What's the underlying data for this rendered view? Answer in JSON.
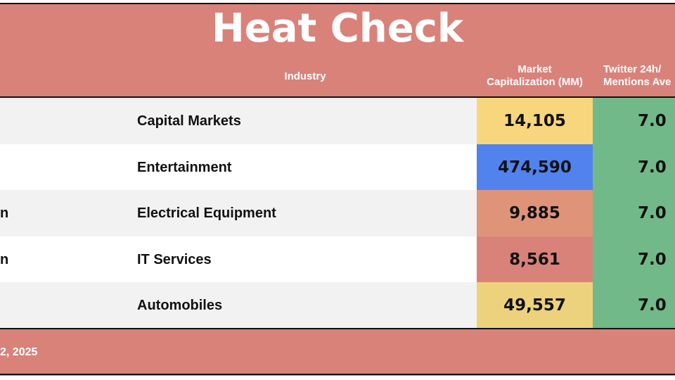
{
  "header": {
    "title": "Heat Check"
  },
  "table": {
    "columns": {
      "industry": "Industry",
      "market_cap": [
        "Market",
        "Capitalization (MM)"
      ],
      "twitter": [
        "Twitter 24h/",
        "Mentions Ave"
      ]
    },
    "rows": [
      {
        "industry": "Capital Markets",
        "market_cap": "14,105",
        "twitter": "7.0"
      },
      {
        "industry": "Entertainment",
        "market_cap": "474,590",
        "twitter": "7.0"
      },
      {
        "name": "n",
        "industry": "Electrical Equipment",
        "market_cap": "9,885",
        "twitter": "7.0"
      },
      {
        "name": "n",
        "industry": "IT Services",
        "market_cap": "8,561",
        "twitter": "7.0"
      },
      {
        "industry": "Automobiles",
        "market_cap": "49,557",
        "twitter": "7.0"
      }
    ]
  },
  "footer": {
    "text": "2, 2025"
  }
}
